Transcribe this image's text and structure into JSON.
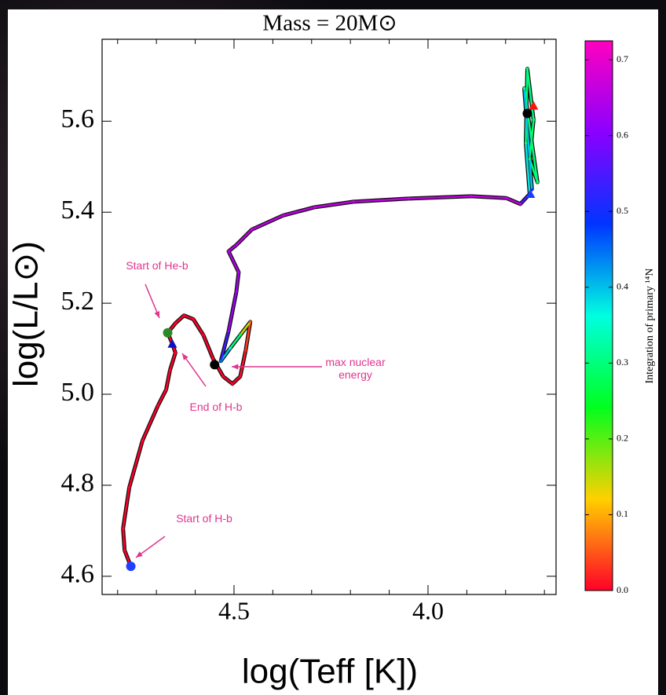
{
  "chart_data": {
    "type": "line",
    "title": "Mass = 20M⊙",
    "xlabel": "log(Teff [K])",
    "ylabel": "log(L/L⊙)",
    "xlim": [
      4.84,
      3.67
    ],
    "ylim": [
      4.56,
      5.78
    ],
    "xticks": [
      4.5,
      {
        "value": 4,
        "label": "4.0"
      }
    ],
    "xminorticks": [
      4.8,
      4.7,
      4.6,
      4.4,
      4.3,
      4.2,
      4.1,
      3.9,
      3.8,
      3.7
    ],
    "yticks": [
      4.6,
      4.8,
      {
        "value": 5,
        "label": "5.0"
      },
      5.2,
      5.4,
      5.6
    ],
    "x": [
      4.766,
      4.782,
      4.786,
      4.77,
      4.736,
      4.696,
      4.675,
      4.665,
      4.651,
      4.659,
      4.671,
      4.651,
      4.629,
      4.605,
      4.579,
      4.554,
      4.528,
      4.504,
      4.484,
      4.47,
      4.458,
      4.484,
      4.51,
      4.534,
      4.514,
      4.494,
      4.488,
      4.514,
      4.494,
      4.454,
      4.373,
      4.292,
      4.192,
      4.05,
      3.889,
      3.798,
      3.762,
      3.738,
      3.748,
      3.744,
      3.728,
      3.738,
      3.718,
      3.752,
      3.732
    ],
    "series": [
      {
        "values": [
          4.622,
          4.657,
          4.705,
          4.795,
          4.898,
          4.975,
          5.01,
          5.053,
          5.091,
          5.111,
          5.135,
          5.156,
          5.173,
          5.165,
          5.13,
          5.078,
          5.039,
          5.023,
          5.039,
          5.096,
          5.159,
          5.13,
          5.101,
          5.073,
          5.139,
          5.225,
          5.268,
          5.314,
          5.328,
          5.362,
          5.393,
          5.411,
          5.423,
          5.43,
          5.435,
          5.431,
          5.418,
          5.44,
          5.552,
          5.715,
          5.603,
          5.517,
          5.466,
          5.672,
          5.449
        ],
        "z": [
          0,
          0,
          0,
          0,
          0,
          0,
          0,
          0,
          0,
          0,
          0,
          0,
          0,
          0,
          0,
          0,
          0,
          0,
          0,
          0.02,
          0.05,
          0.25,
          0.35,
          0.45,
          0.62,
          0.63,
          0.64,
          0.65,
          0.65,
          0.66,
          0.66,
          0.66,
          0.66,
          0.66,
          0.66,
          0.66,
          0.66,
          0.45,
          0.3,
          0.3,
          0.3,
          0.28,
          0.3,
          0.3,
          0.5
        ],
        "color": "#111111"
      }
    ],
    "markers": [
      {
        "x": 4.766,
        "y": 4.622,
        "color": "#2040ff",
        "shape": "circle"
      },
      {
        "x": 4.659,
        "y": 5.111,
        "color": "#1010c0",
        "shape": "triangle"
      },
      {
        "x": 4.671,
        "y": 5.135,
        "color": "#2a8a2a",
        "shape": "circle"
      },
      {
        "x": 4.55,
        "y": 5.065,
        "color": "#000000",
        "shape": "circle"
      },
      {
        "x": 3.744,
        "y": 5.617,
        "color": "#000000",
        "shape": "circle"
      },
      {
        "x": 3.728,
        "y": 5.634,
        "color": "#ff1010",
        "shape": "triangle"
      },
      {
        "x": 3.736,
        "y": 5.44,
        "color": "#1a3cff",
        "shape": "triangle"
      }
    ],
    "annotations": [
      {
        "text": "Start of He-b",
        "color": "#e0358f"
      },
      {
        "text": "End of H-b",
        "color": "#e0358f"
      },
      {
        "text": "max nuclear energy",
        "color": "#e0358f"
      },
      {
        "text": "Start of H-b",
        "color": "#e0358f"
      }
    ],
    "colorbar": {
      "label": "Integration of primary ¹⁴N",
      "lim": [
        0,
        0.725
      ],
      "ticks": [
        {
          "value": 0,
          "label": "0.0"
        },
        0.1,
        0.2,
        0.3,
        0.4,
        0.5,
        0.6,
        0.7
      ],
      "colormap": [
        "#ff0029",
        "#ffd000",
        "#00ff1e",
        "#00ffe0",
        "#0035ff",
        "#8a00ff",
        "#ff00bf"
      ]
    }
  }
}
